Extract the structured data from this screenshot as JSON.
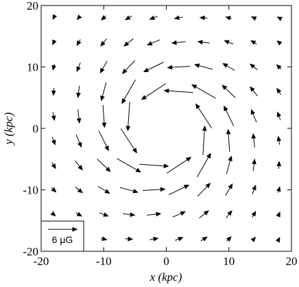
{
  "chart_data": {
    "type": "quiver",
    "xlabel": "x (kpc)",
    "ylabel": "y (kpc)",
    "xlim": [
      -20,
      20
    ],
    "ylim": [
      -20,
      20
    ],
    "xticks": [
      -20,
      -10,
      0,
      10,
      20
    ],
    "yticks": [
      -20,
      -10,
      0,
      10,
      20
    ],
    "color": "#000000",
    "key": {
      "value": 6,
      "label": "6 μG"
    },
    "key_corner": "lower left",
    "x": [
      2,
      2,
      2,
      2,
      6,
      6,
      6,
      6,
      6,
      10,
      10,
      10,
      10,
      10,
      14,
      14,
      14,
      14,
      14,
      18,
      18,
      18,
      18,
      18,
      -6,
      -10,
      -14,
      -18,
      -2,
      -6,
      -10,
      -14,
      -18,
      -2,
      -6,
      -10,
      -14,
      -18,
      -2,
      -6,
      -10,
      -14,
      -18,
      -2,
      -6,
      -10,
      -14,
      -18,
      -2,
      -2,
      -2,
      -2,
      -6,
      -6,
      -6,
      -6,
      -6,
      -10,
      -10,
      -10,
      -10,
      -10,
      -14,
      -14,
      -14,
      -14,
      -14,
      -18,
      -18,
      -18,
      -18,
      -18,
      6,
      10,
      14,
      18,
      2,
      6,
      10,
      14,
      18,
      2,
      6,
      10,
      14,
      18,
      2,
      6,
      10,
      14,
      18,
      2,
      6,
      10,
      14,
      18
    ],
    "y": [
      6,
      10,
      14,
      18,
      2,
      6,
      10,
      14,
      18,
      2,
      6,
      10,
      14,
      18,
      2,
      6,
      10,
      14,
      18,
      2,
      6,
      10,
      14,
      18,
      2,
      2,
      2,
      2,
      6,
      6,
      6,
      6,
      6,
      10,
      10,
      10,
      10,
      10,
      14,
      14,
      14,
      14,
      14,
      18,
      18,
      18,
      18,
      18,
      -6,
      -10,
      -14,
      -18,
      -2,
      -6,
      -10,
      -14,
      -18,
      -2,
      -6,
      -10,
      -14,
      -18,
      -2,
      -6,
      -10,
      -14,
      -18,
      -2,
      -6,
      -10,
      -14,
      -18,
      -2,
      -2,
      -2,
      -2,
      -6,
      -6,
      -6,
      -6,
      -6,
      -10,
      -10,
      -10,
      -10,
      -10,
      -14,
      -14,
      -14,
      -14,
      -14,
      -18,
      -18,
      -18,
      -18,
      -18
    ],
    "u": [
      -6.0,
      -4.6,
      -2.8,
      -1.7,
      -3.3,
      -4.9,
      -3.7,
      -2.4,
      -1.5,
      -2.0,
      -2.7,
      -2.4,
      -1.8,
      -1.2,
      -1.1,
      -1.5,
      -1.5,
      -1.2,
      -0.9,
      -0.6,
      -0.8,
      -0.9,
      -0.7,
      -0.6,
      -0.4,
      0.3,
      0.3,
      0.3,
      -5.0,
      -2.8,
      -1.0,
      -0.3,
      -0.1,
      -4.1,
      -2.6,
      -1.4,
      -0.7,
      -0.3,
      -2.6,
      -1.9,
      -1.2,
      -0.7,
      -0.4,
      -1.6,
      -1.3,
      -0.9,
      -0.6,
      -0.3,
      6.0,
      4.6,
      2.8,
      1.7,
      3.3,
      4.9,
      3.7,
      2.4,
      1.5,
      2.0,
      2.7,
      2.4,
      1.8,
      1.2,
      1.1,
      1.5,
      1.5,
      1.2,
      0.9,
      0.6,
      0.8,
      0.9,
      0.7,
      0.6,
      0.4,
      -0.3,
      -0.3,
      -0.3,
      5.0,
      2.8,
      1.0,
      0.3,
      0.1,
      4.1,
      2.6,
      1.4,
      0.7,
      0.3,
      2.6,
      1.9,
      1.2,
      0.7,
      0.4,
      1.6,
      1.3,
      0.9,
      0.6,
      0.3
    ],
    "v": [
      0.4,
      -0.3,
      -0.3,
      -0.3,
      5.0,
      2.8,
      1.0,
      0.3,
      0.1,
      4.1,
      2.6,
      1.4,
      0.7,
      0.3,
      2.6,
      1.9,
      1.2,
      0.7,
      0.4,
      1.6,
      1.3,
      0.9,
      0.6,
      0.3,
      -6.0,
      -4.6,
      -2.8,
      -1.7,
      -3.3,
      -4.9,
      -3.7,
      -2.4,
      -1.5,
      -2.0,
      -2.7,
      -2.4,
      -1.8,
      -1.2,
      -1.1,
      -1.5,
      -1.5,
      -1.2,
      -0.9,
      -0.6,
      -0.8,
      -0.9,
      -0.7,
      -0.6,
      -0.4,
      0.3,
      0.3,
      0.3,
      -5.0,
      -2.8,
      -1.0,
      -0.3,
      -0.1,
      -4.1,
      -2.6,
      -1.4,
      -0.7,
      -0.3,
      -2.6,
      -1.9,
      -1.2,
      -0.7,
      -0.4,
      -1.6,
      -1.3,
      -0.9,
      -0.6,
      -0.3,
      6.0,
      4.6,
      2.8,
      1.7,
      3.3,
      4.9,
      3.7,
      2.4,
      1.5,
      2.0,
      2.7,
      2.4,
      1.8,
      1.2,
      1.1,
      1.5,
      1.5,
      1.2,
      0.9,
      0.6,
      0.8,
      0.9,
      0.7,
      0.6
    ]
  }
}
